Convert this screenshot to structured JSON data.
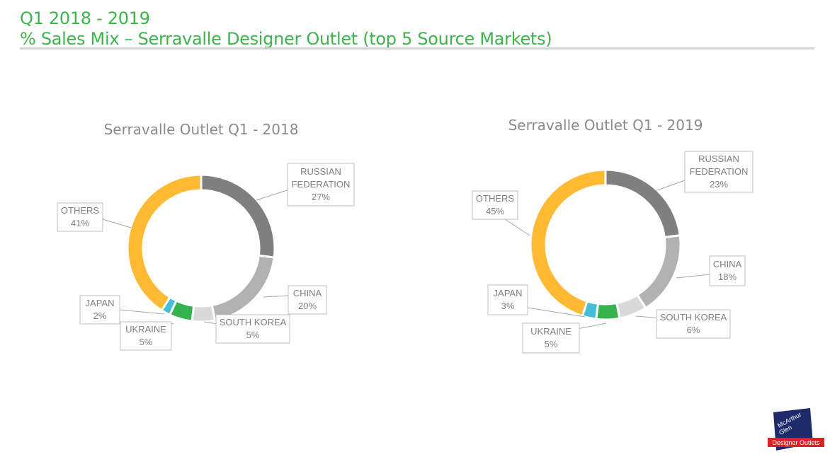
{
  "header": {
    "line1": "Q1 2018 - 2019",
    "line2": "% Sales Mix – Serravalle Designer Outlet (top 5 Source Markets)"
  },
  "colors": {
    "RUSSIAN FEDERATION": "#7f7f7f",
    "CHINA": "#b2b2b2",
    "SOUTH KOREA": "#d9d9d9",
    "UKRAINE": "#36b34f",
    "JAPAN": "#45bfd6",
    "OTHERS": "#ffb933"
  },
  "logo": {
    "line1": "McArthur",
    "line2": "Glen",
    "line3": "Designer Outlets"
  },
  "chart_data": [
    {
      "type": "pie",
      "title": "Serravalle Outlet Q1 - 2018",
      "categories": [
        "RUSSIAN FEDERATION",
        "CHINA",
        "SOUTH KOREA",
        "UKRAINE",
        "JAPAN",
        "OTHERS"
      ],
      "values": [
        27,
        20,
        5,
        5,
        2,
        41
      ],
      "labels": [
        {
          "name": "RUSSIAN FEDERATION",
          "lines": [
            "RUSSIAN",
            "FEDERATION",
            "27%"
          ]
        },
        {
          "name": "CHINA",
          "lines": [
            "CHINA",
            "20%"
          ]
        },
        {
          "name": "SOUTH KOREA",
          "lines": [
            "SOUTH KOREA",
            "5%"
          ]
        },
        {
          "name": "UKRAINE",
          "lines": [
            "UKRAINE",
            "5%"
          ]
        },
        {
          "name": "JAPAN",
          "lines": [
            "JAPAN",
            "2%"
          ]
        },
        {
          "name": "OTHERS",
          "lines": [
            "OTHERS",
            "41%"
          ]
        }
      ],
      "unit": "%"
    },
    {
      "type": "pie",
      "title": "Serravalle Outlet Q1 - 2019",
      "categories": [
        "RUSSIAN FEDERATION",
        "CHINA",
        "SOUTH KOREA",
        "UKRAINE",
        "JAPAN",
        "OTHERS"
      ],
      "values": [
        23,
        18,
        6,
        5,
        3,
        45
      ],
      "labels": [
        {
          "name": "RUSSIAN FEDERATION",
          "lines": [
            "RUSSIAN",
            "FEDERATION",
            "23%"
          ]
        },
        {
          "name": "CHINA",
          "lines": [
            "CHINA",
            "18%"
          ]
        },
        {
          "name": "SOUTH KOREA",
          "lines": [
            "SOUTH KOREA",
            "6%"
          ]
        },
        {
          "name": "UKRAINE",
          "lines": [
            "UKRAINE",
            "5%"
          ]
        },
        {
          "name": "JAPAN",
          "lines": [
            "JAPAN",
            "3%"
          ]
        },
        {
          "name": "OTHERS",
          "lines": [
            "OTHERS",
            "45%"
          ]
        }
      ],
      "unit": "%"
    }
  ]
}
